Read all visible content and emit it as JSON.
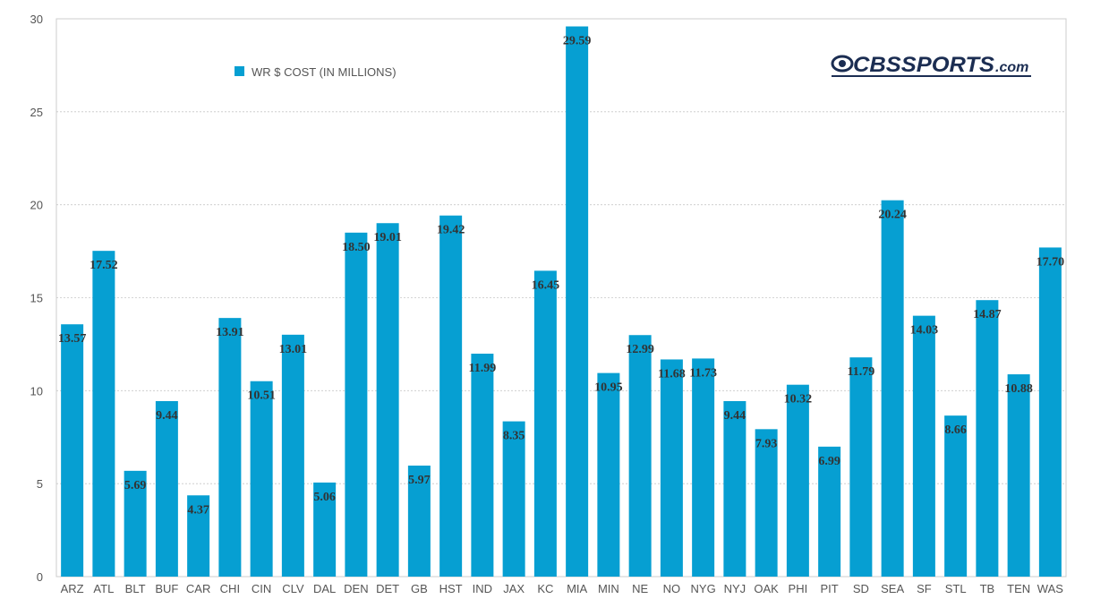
{
  "chart_data": {
    "type": "bar",
    "title": "",
    "xlabel": "",
    "ylabel": "",
    "ylim": [
      0,
      30
    ],
    "yticks": [
      0,
      5,
      10,
      15,
      20,
      25,
      30
    ],
    "grid": true,
    "legend_position": "top-left",
    "categories": [
      "ARZ",
      "ATL",
      "BLT",
      "BUF",
      "CAR",
      "CHI",
      "CIN",
      "CLV",
      "DAL",
      "DEN",
      "DET",
      "GB",
      "HST",
      "IND",
      "JAX",
      "KC",
      "MIA",
      "MIN",
      "NE",
      "NO",
      "NYG",
      "NYJ",
      "OAK",
      "PHI",
      "PIT",
      "SD",
      "SEA",
      "SF",
      "STL",
      "TB",
      "TEN",
      "WAS"
    ],
    "series": [
      {
        "name": "WR $ COST (IN MILLIONS)",
        "color": "#069fd2",
        "values": [
          13.57,
          17.52,
          5.69,
          9.44,
          4.37,
          13.91,
          10.51,
          13.01,
          5.06,
          18.5,
          19.01,
          5.97,
          19.42,
          11.99,
          8.35,
          16.45,
          29.59,
          10.95,
          12.99,
          11.68,
          11.73,
          9.44,
          7.93,
          10.32,
          6.99,
          11.79,
          20.24,
          14.03,
          8.66,
          14.87,
          10.88,
          17.7
        ],
        "labels": [
          "13.57",
          "17.52",
          "5.69",
          "9.44",
          "4.37",
          "13.91",
          "10.51",
          "13.01",
          "5.06",
          "18.50",
          "19.01",
          "5.97",
          "19.42",
          "11.99",
          "8.35",
          "16.45",
          "29.59",
          "10.95",
          "12.99",
          "11.68",
          "11.73",
          "9.44",
          "7.93",
          "10.32",
          "6.99",
          "11.79",
          "20.24",
          "14.03",
          "8.66",
          "14.87",
          "10.88",
          "17.70"
        ]
      }
    ],
    "logo": {
      "text": "CBSSPORTS",
      "suffix": ".com",
      "color": "#1b2d52"
    }
  }
}
